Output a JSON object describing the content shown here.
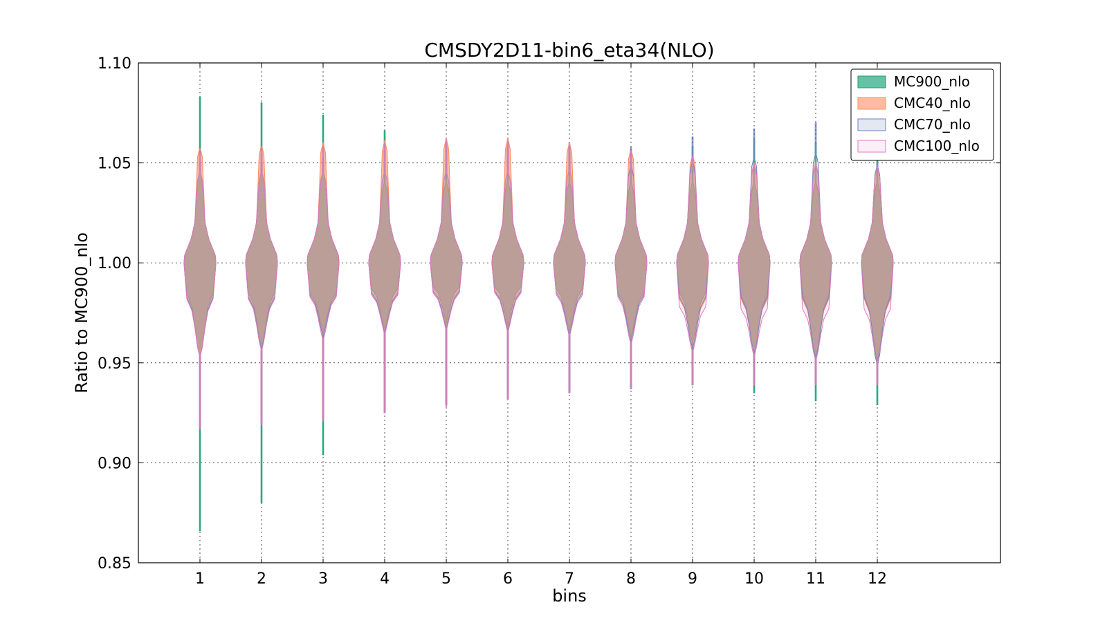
{
  "chart_data": {
    "type": "violin",
    "title": "CMSDY2D11-bin6_eta34(NLO)",
    "xlabel": "bins",
    "ylabel": "Ratio to MC900_nlo",
    "ylim": [
      0.85,
      1.1
    ],
    "xlim": [
      0,
      14
    ],
    "yticks": [
      "0.85",
      "0.90",
      "0.95",
      "1.00",
      "1.05",
      "1.10"
    ],
    "categories": [
      "1",
      "2",
      "3",
      "4",
      "5",
      "6",
      "7",
      "8",
      "9",
      "10",
      "11",
      "12"
    ],
    "grid": true,
    "legend_position": "top-right",
    "series": [
      {
        "name": "MC900_nlo",
        "fill": "#66c2a5",
        "stroke": "#1b9e77",
        "fill_opacity": 1.0,
        "values": [
          {
            "min": 0.866,
            "lo": 0.958,
            "q": 0.985,
            "hi": 1.045,
            "max": 1.083
          },
          {
            "min": 0.88,
            "lo": 0.963,
            "q": 0.985,
            "hi": 1.045,
            "max": 1.08
          },
          {
            "min": 0.904,
            "lo": 0.97,
            "q": 0.985,
            "hi": 1.045,
            "max": 1.074
          },
          {
            "min": 0.925,
            "lo": 0.972,
            "q": 0.987,
            "hi": 1.04,
            "max": 1.066
          },
          {
            "min": 0.93,
            "lo": 0.975,
            "q": 0.988,
            "hi": 1.04,
            "max": 1.061
          },
          {
            "min": 0.933,
            "lo": 0.974,
            "q": 0.988,
            "hi": 1.04,
            "max": 1.061
          },
          {
            "min": 0.935,
            "lo": 0.971,
            "q": 0.987,
            "hi": 1.04,
            "max": 1.059
          },
          {
            "min": 0.937,
            "lo": 0.968,
            "q": 0.985,
            "hi": 1.04,
            "max": 1.057
          },
          {
            "min": 0.94,
            "lo": 0.965,
            "q": 0.985,
            "hi": 1.04,
            "max": 1.058
          },
          {
            "min": 0.935,
            "lo": 0.96,
            "q": 0.984,
            "hi": 1.04,
            "max": 1.062
          },
          {
            "min": 0.931,
            "lo": 0.956,
            "q": 0.984,
            "hi": 1.04,
            "max": 1.06
          },
          {
            "min": 0.929,
            "lo": 0.954,
            "q": 0.984,
            "hi": 1.04,
            "max": 1.054
          }
        ]
      },
      {
        "name": "CMC40_nlo",
        "fill": "#fc8d62",
        "stroke": "#fc8d62",
        "fill_opacity": 0.6,
        "values": [
          {
            "min": 0.918,
            "lo": 0.96,
            "q": 0.982,
            "hi": 1.057,
            "max": 1.057
          },
          {
            "min": 0.92,
            "lo": 0.962,
            "q": 0.982,
            "hi": 1.058,
            "max": 1.058
          },
          {
            "min": 0.922,
            "lo": 0.968,
            "q": 0.983,
            "hi": 1.059,
            "max": 1.06
          },
          {
            "min": 0.926,
            "lo": 0.971,
            "q": 0.984,
            "hi": 1.06,
            "max": 1.061
          },
          {
            "min": 0.929,
            "lo": 0.973,
            "q": 0.985,
            "hi": 1.061,
            "max": 1.062
          },
          {
            "min": 0.932,
            "lo": 0.972,
            "q": 0.985,
            "hi": 1.061,
            "max": 1.062
          },
          {
            "min": 0.935,
            "lo": 0.969,
            "q": 0.985,
            "hi": 1.059,
            "max": 1.06
          },
          {
            "min": 0.937,
            "lo": 0.966,
            "q": 0.984,
            "hi": 1.056,
            "max": 1.057
          },
          {
            "min": 0.939,
            "lo": 0.962,
            "q": 0.982,
            "hi": 1.053,
            "max": 1.054
          },
          {
            "min": 0.94,
            "lo": 0.96,
            "q": 0.982,
            "hi": 1.049,
            "max": 1.05
          },
          {
            "min": 0.94,
            "lo": 0.958,
            "q": 0.982,
            "hi": 1.049,
            "max": 1.05
          },
          {
            "min": 0.94,
            "lo": 0.956,
            "q": 0.982,
            "hi": 1.048,
            "max": 1.049
          }
        ]
      },
      {
        "name": "CMC70_nlo",
        "fill": "#8da0cb",
        "stroke": "#6a80c0",
        "fill_opacity": 0.25,
        "values": [
          {
            "min": 0.918,
            "lo": 0.958,
            "q": 0.983,
            "hi": 1.045,
            "max": 1.05
          },
          {
            "min": 0.92,
            "lo": 0.962,
            "q": 0.983,
            "hi": 1.045,
            "max": 1.05
          },
          {
            "min": 0.922,
            "lo": 0.968,
            "q": 0.984,
            "hi": 1.045,
            "max": 1.052
          },
          {
            "min": 0.926,
            "lo": 0.97,
            "q": 0.985,
            "hi": 1.045,
            "max": 1.056
          },
          {
            "min": 0.929,
            "lo": 0.972,
            "q": 0.986,
            "hi": 1.045,
            "max": 1.058
          },
          {
            "min": 0.932,
            "lo": 0.971,
            "q": 0.986,
            "hi": 1.045,
            "max": 1.058
          },
          {
            "min": 0.935,
            "lo": 0.969,
            "q": 0.985,
            "hi": 1.046,
            "max": 1.057
          },
          {
            "min": 0.937,
            "lo": 0.966,
            "q": 0.984,
            "hi": 1.048,
            "max": 1.058
          },
          {
            "min": 0.939,
            "lo": 0.962,
            "q": 0.983,
            "hi": 1.05,
            "max": 1.063
          },
          {
            "min": 0.94,
            "lo": 0.96,
            "q": 0.983,
            "hi": 1.052,
            "max": 1.067
          },
          {
            "min": 0.94,
            "lo": 0.958,
            "q": 0.983,
            "hi": 1.054,
            "max": 1.07
          },
          {
            "min": 0.94,
            "lo": 0.956,
            "q": 0.983,
            "hi": 1.048,
            "max": 1.05
          }
        ]
      },
      {
        "name": "CMC100_nlo",
        "fill": "#e78ac3",
        "stroke": "#e07ac0",
        "fill_opacity": 0.15,
        "values": [
          {
            "min": 0.917,
            "lo": 0.958,
            "q": 0.982,
            "hi": 1.045,
            "max": 1.055
          },
          {
            "min": 0.919,
            "lo": 0.961,
            "q": 0.982,
            "hi": 1.045,
            "max": 1.056
          },
          {
            "min": 0.921,
            "lo": 0.966,
            "q": 0.983,
            "hi": 1.045,
            "max": 1.058
          },
          {
            "min": 0.925,
            "lo": 0.969,
            "q": 0.984,
            "hi": 1.045,
            "max": 1.06
          },
          {
            "min": 0.928,
            "lo": 0.971,
            "q": 0.985,
            "hi": 1.045,
            "max": 1.061
          },
          {
            "min": 0.932,
            "lo": 0.97,
            "q": 0.985,
            "hi": 1.045,
            "max": 1.061
          },
          {
            "min": 0.935,
            "lo": 0.968,
            "q": 0.984,
            "hi": 1.046,
            "max": 1.059
          },
          {
            "min": 0.937,
            "lo": 0.964,
            "q": 0.983,
            "hi": 1.047,
            "max": 1.056
          },
          {
            "min": 0.939,
            "lo": 0.96,
            "q": 0.978,
            "hi": 1.048,
            "max": 1.053
          },
          {
            "min": 0.939,
            "lo": 0.958,
            "q": 0.977,
            "hi": 1.048,
            "max": 1.049
          },
          {
            "min": 0.939,
            "lo": 0.956,
            "q": 0.977,
            "hi": 1.048,
            "max": 1.049
          },
          {
            "min": 0.939,
            "lo": 0.955,
            "q": 0.977,
            "hi": 1.047,
            "max": 1.048
          }
        ]
      }
    ]
  }
}
